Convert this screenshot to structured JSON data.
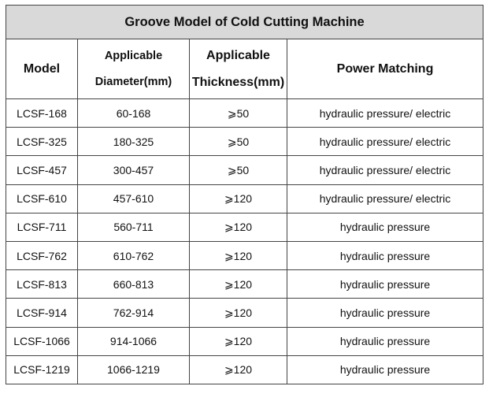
{
  "table": {
    "title": "Groove Model of Cold Cutting Machine",
    "headers": {
      "model": "Model",
      "diameter_line1": "Applicable",
      "diameter_line2": "Diameter(mm)",
      "thickness_line1": "Applicable",
      "thickness_line2": "Thickness(mm)",
      "power": "Power Matching"
    },
    "rows": [
      {
        "model": "LCSF-168",
        "diameter": "60-168",
        "thickness": "⩾50",
        "power": "hydraulic pressure/ electric"
      },
      {
        "model": "LCSF-325",
        "diameter": "180-325",
        "thickness": "⩾50",
        "power": "hydraulic pressure/ electric"
      },
      {
        "model": "LCSF-457",
        "diameter": "300-457",
        "thickness": "⩾50",
        "power": "hydraulic pressure/ electric"
      },
      {
        "model": "LCSF-610",
        "diameter": "457-610",
        "thickness": "⩾120",
        "power": "hydraulic pressure/ electric"
      },
      {
        "model": "LCSF-711",
        "diameter": "560-711",
        "thickness": "⩾120",
        "power": "hydraulic pressure"
      },
      {
        "model": "LCSF-762",
        "diameter": "610-762",
        "thickness": "⩾120",
        "power": "hydraulic pressure"
      },
      {
        "model": "LCSF-813",
        "diameter": "660-813",
        "thickness": "⩾120",
        "power": "hydraulic pressure"
      },
      {
        "model": "LCSF-914",
        "diameter": "762-914",
        "thickness": "⩾120",
        "power": "hydraulic pressure"
      },
      {
        "model": "LCSF-1066",
        "diameter": "914-1066",
        "thickness": "⩾120",
        "power": "hydraulic pressure"
      },
      {
        "model": "LCSF-1219",
        "diameter": "1066-1219",
        "thickness": "⩾120",
        "power": "hydraulic pressure"
      }
    ]
  },
  "colors": {
    "title_background": "#d9d9d9",
    "border": "#444444"
  }
}
